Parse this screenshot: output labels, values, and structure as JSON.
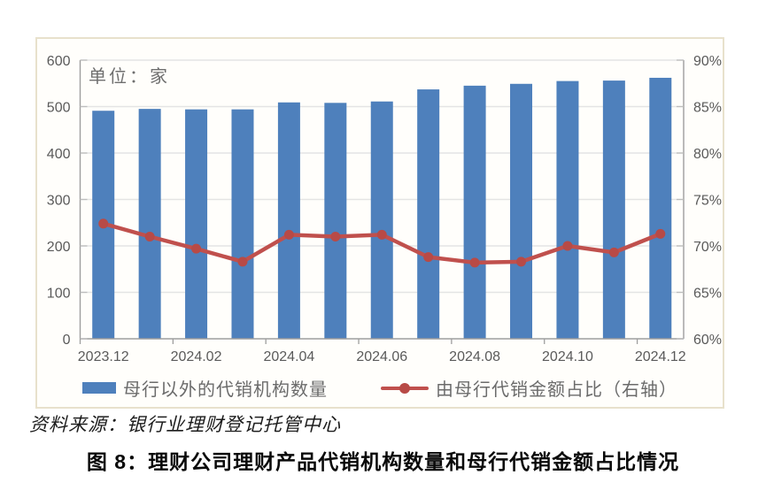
{
  "chart_data": {
    "type": "bar+line combo",
    "categories": [
      "2023.12",
      "2024.01",
      "2024.02",
      "2024.03",
      "2024.04",
      "2024.05",
      "2024.06",
      "2024.07",
      "2024.08",
      "2024.09",
      "2024.10",
      "2024.11",
      "2024.12"
    ],
    "x_tick_labels_shown": [
      "2023.12",
      "2024.02",
      "2024.04",
      "2024.06",
      "2024.08",
      "2024.10",
      "2024.12"
    ],
    "series": [
      {
        "name": "母行以外的代销机构数量",
        "type": "bar",
        "axis": "left",
        "values": [
          491,
          495,
          494,
          494,
          509,
          508,
          511,
          537,
          545,
          549,
          555,
          556,
          562
        ]
      },
      {
        "name": "由母行代销金额占比（右轴）",
        "type": "line",
        "axis": "right",
        "values": [
          72.4,
          71.0,
          69.7,
          68.3,
          71.2,
          71.0,
          71.2,
          68.8,
          68.2,
          68.3,
          70.0,
          69.3,
          71.3
        ]
      }
    ],
    "left_axis": {
      "min": 0,
      "max": 600,
      "step": 100,
      "unit_label": "单位：家"
    },
    "right_axis": {
      "min": 60,
      "max": 90,
      "step": 5,
      "suffix": "%"
    },
    "grid": true,
    "legend_position": "bottom"
  },
  "source_note": "资料来源：银行业理财登记托管中心",
  "caption": "图 8：理财公司理财产品代销机构数量和母行代销金额占比情况",
  "colors": {
    "bar": "#4e80bc",
    "line": "#c0504d",
    "marker": "#b84a46",
    "grid": "#e4e4e4",
    "axis": "#9e9e9e",
    "tick": "#bdbdbd",
    "axis_label": "#5a5a5a",
    "frame_border": "#e8e1cc"
  }
}
